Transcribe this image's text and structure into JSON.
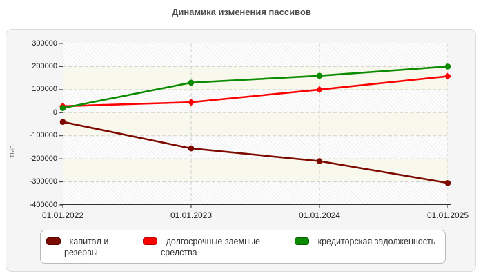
{
  "page": {
    "title": "Динамика изменения пассивов"
  },
  "chart_data": {
    "type": "line",
    "title": "Динамика изменения пассивов",
    "categories": [
      "01.01.2022",
      "01.01.2023",
      "01.01.2024",
      "01.01.2025"
    ],
    "series": [
      {
        "name": "капитал и резервы",
        "color": "#7d0a00",
        "swatch_border": "#530600",
        "marker": "circle",
        "values": [
          -40000,
          -155000,
          -210000,
          -305000
        ]
      },
      {
        "name": "долгосрочные заемные средства",
        "color": "#fb0200",
        "swatch_border": "#b50200",
        "marker": "diamond",
        "values": [
          28000,
          45000,
          100000,
          158000
        ]
      },
      {
        "name": "кредиторская задолженность",
        "color": "#0b8c00",
        "swatch_border": "#075c00",
        "marker": "circle",
        "values": [
          20000,
          130000,
          160000,
          200000
        ]
      }
    ],
    "xlabel": "",
    "ylabel": "тыс.",
    "ylim": [
      -400000,
      300000
    ],
    "ytick_step": 100000,
    "grid": "dashed-horizontal-and-vertical",
    "plot_bands": "alternating hatched and ivory horizontal bands",
    "legend_position": "bottom"
  },
  "legend": {
    "items": [
      {
        "label": "- капитал и резервы"
      },
      {
        "label": "- долгосрочные заемные средства"
      },
      {
        "label": "- кредиторская задолженность"
      }
    ]
  },
  "colors": {
    "panel_bg": "#f5f5f5",
    "panel_border": "#dcdcdc",
    "band_ivory": "#f8f8ec",
    "hatch_line": "#e3e3e3",
    "gridline": "#cfcfcf",
    "axis": "#333333",
    "title_text": "#4d4d4d",
    "tick_text": "#1a1a1a",
    "ylabel_text": "#808080"
  }
}
